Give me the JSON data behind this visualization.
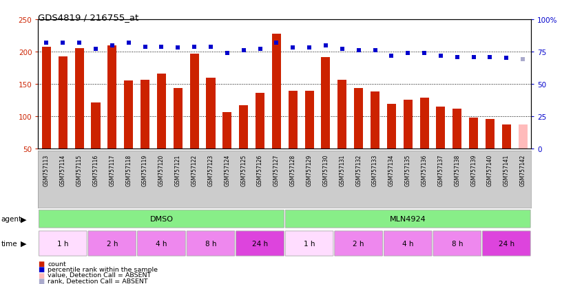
{
  "title": "GDS4819 / 216755_at",
  "samples": [
    "GSM757113",
    "GSM757114",
    "GSM757115",
    "GSM757116",
    "GSM757117",
    "GSM757118",
    "GSM757119",
    "GSM757120",
    "GSM757121",
    "GSM757122",
    "GSM757123",
    "GSM757124",
    "GSM757125",
    "GSM757126",
    "GSM757127",
    "GSM757128",
    "GSM757129",
    "GSM757130",
    "GSM757131",
    "GSM757132",
    "GSM757133",
    "GSM757134",
    "GSM757135",
    "GSM757136",
    "GSM757137",
    "GSM757138",
    "GSM757139",
    "GSM757140",
    "GSM757141",
    "GSM757142"
  ],
  "bar_values": [
    208,
    193,
    205,
    122,
    210,
    156,
    157,
    166,
    144,
    197,
    160,
    107,
    117,
    136,
    228,
    140,
    140,
    192,
    157,
    144,
    138,
    119,
    126,
    129,
    115,
    112,
    98,
    96,
    88,
    88
  ],
  "percentile_values": [
    82,
    82,
    82,
    77,
    80,
    82,
    79,
    79,
    78,
    79,
    79,
    74,
    76,
    77,
    82,
    78,
    78,
    80,
    77,
    76,
    76,
    72,
    74,
    74,
    72,
    71,
    71,
    71,
    70,
    69
  ],
  "absent_bar_indices": [
    29
  ],
  "absent_rank_indices": [
    29
  ],
  "bar_color": "#cc2200",
  "absent_bar_color": "#ffbbbb",
  "rank_color": "#0000cc",
  "absent_rank_color": "#aaaacc",
  "ylim_left": [
    50,
    250
  ],
  "ylim_right": [
    0,
    100
  ],
  "yticks_left": [
    50,
    100,
    150,
    200,
    250
  ],
  "yticks_right": [
    0,
    25,
    50,
    75,
    100
  ],
  "ytick_labels_right": [
    "0",
    "25",
    "50",
    "75",
    "100%"
  ],
  "grid_values": [
    100,
    150,
    200
  ],
  "time_groups": [
    {
      "label": "1 h",
      "start": 0,
      "end": 3,
      "color": "#ffddff"
    },
    {
      "label": "2 h",
      "start": 3,
      "end": 6,
      "color": "#ee88ee"
    },
    {
      "label": "4 h",
      "start": 6,
      "end": 9,
      "color": "#ee88ee"
    },
    {
      "label": "8 h",
      "start": 9,
      "end": 12,
      "color": "#ee88ee"
    },
    {
      "label": "24 h",
      "start": 12,
      "end": 15,
      "color": "#dd44dd"
    },
    {
      "label": "1 h",
      "start": 15,
      "end": 18,
      "color": "#ffddff"
    },
    {
      "label": "2 h",
      "start": 18,
      "end": 21,
      "color": "#ee88ee"
    },
    {
      "label": "4 h",
      "start": 21,
      "end": 24,
      "color": "#ee88ee"
    },
    {
      "label": "8 h",
      "start": 24,
      "end": 27,
      "color": "#ee88ee"
    },
    {
      "label": "24 h",
      "start": 27,
      "end": 30,
      "color": "#dd44dd"
    }
  ],
  "agent_groups": [
    {
      "label": "DMSO",
      "start": 0,
      "end": 15,
      "color": "#88ee88"
    },
    {
      "label": "MLN4924",
      "start": 15,
      "end": 30,
      "color": "#88ee88"
    }
  ],
  "legend_items": [
    {
      "color": "#cc2200",
      "label": "count"
    },
    {
      "color": "#0000cc",
      "label": "percentile rank within the sample"
    },
    {
      "color": "#ffbbbb",
      "label": "value, Detection Call = ABSENT"
    },
    {
      "color": "#aaaacc",
      "label": "rank, Detection Call = ABSENT"
    }
  ],
  "fig_bg": "#ffffff",
  "plot_bg": "#ffffff",
  "tick_band_color": "#cccccc",
  "bar_width": 0.55
}
